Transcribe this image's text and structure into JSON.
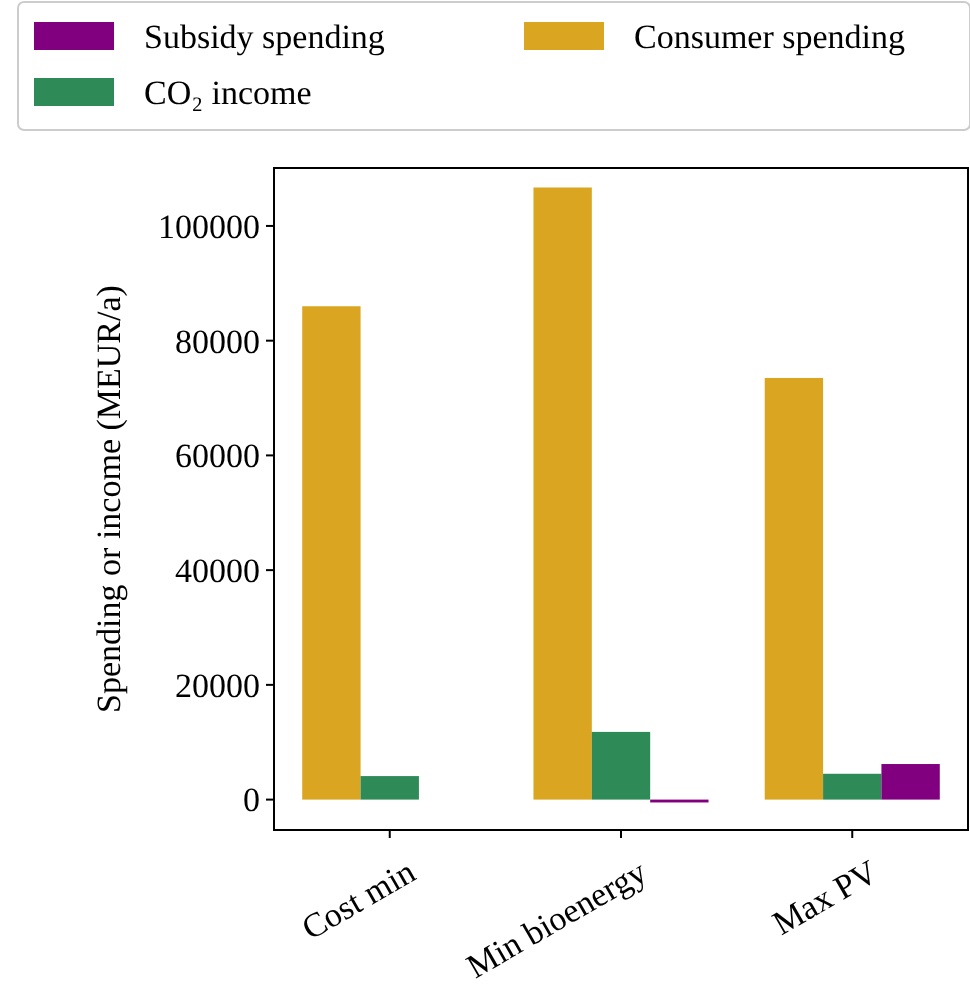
{
  "chart_data": {
    "type": "bar",
    "ylabel": "Spending or income (MEUR/a)",
    "categories": [
      "Cost min",
      "Min bioenergy",
      "Max PV"
    ],
    "series": [
      {
        "name": "Consumer spending",
        "color": "#daa520",
        "values": [
          86000,
          106700,
          73500
        ]
      },
      {
        "name": "CO₂ income",
        "color": "#2e8b57",
        "values": [
          4100,
          11800,
          4500
        ]
      },
      {
        "name": "Subsidy spending",
        "color": "#800080",
        "values": [
          0,
          -500,
          6200
        ]
      }
    ],
    "ylim": [
      -5300,
      110100
    ],
    "yticks": [
      0,
      20000,
      40000,
      60000,
      80000,
      100000
    ],
    "grid": false,
    "legend": "top"
  }
}
